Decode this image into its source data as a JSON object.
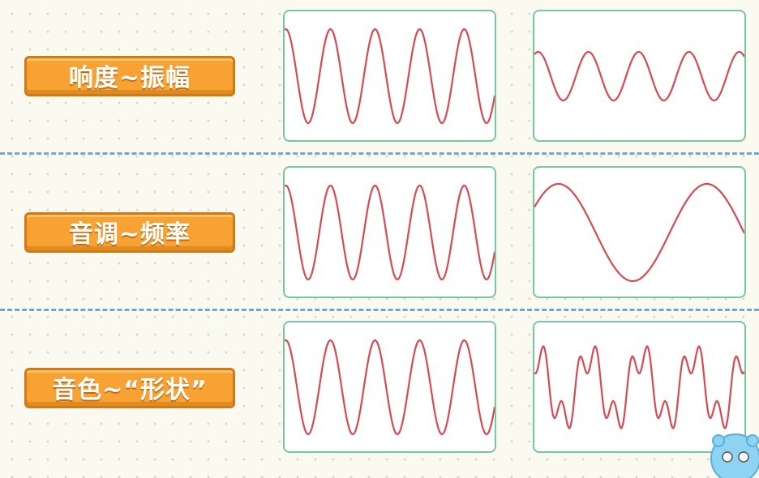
{
  "rows": [
    {
      "label": "响度~振幅"
    },
    {
      "label": "音调~频率"
    },
    {
      "label": "音色~“形状”"
    }
  ],
  "colors": {
    "wave": "#d64a52",
    "label_bg": "#f7a233",
    "panel_border": "#77c7a0",
    "divider": "#6fa8cc"
  }
}
